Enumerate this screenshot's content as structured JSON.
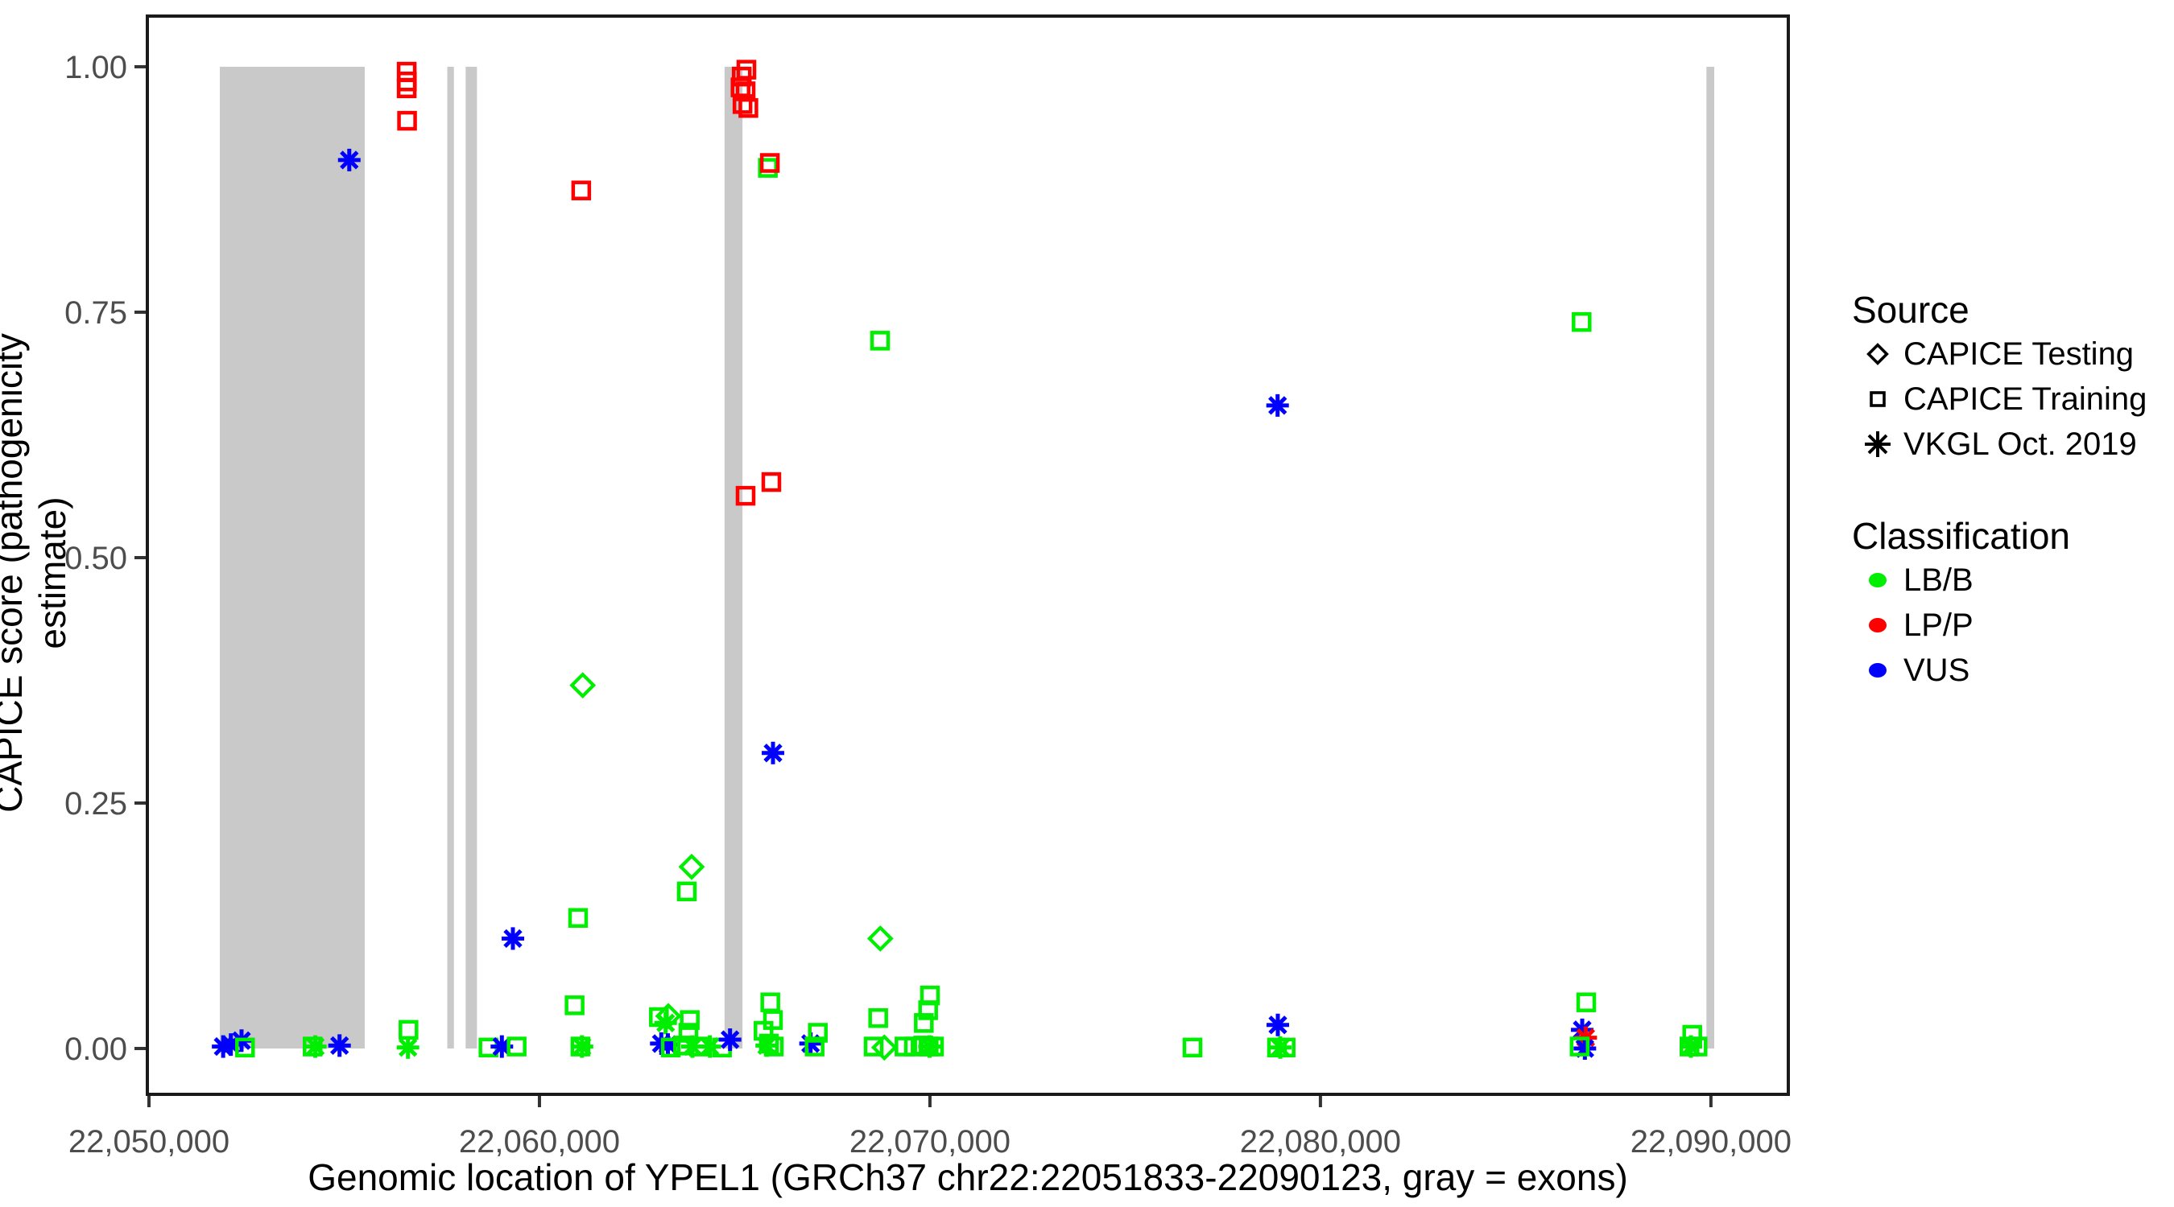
{
  "chart_data": {
    "type": "scatter",
    "title": "",
    "xlabel": "Genomic location of YPEL1 (GRCh37 chr22:22051833-22090123, gray = exons)",
    "ylabel": "CAPICE score (pathogenicity estimate)",
    "xlim": [
      22049959,
      22091982
    ],
    "ylim": [
      -0.0467,
      1.0516
    ],
    "grid": false,
    "x_ticks": [
      {
        "value": 22050000,
        "label": "22,050,000"
      },
      {
        "value": 22060000,
        "label": "22,060,000"
      },
      {
        "value": 22070000,
        "label": "22,070,000"
      },
      {
        "value": 22080000,
        "label": "22,080,000"
      },
      {
        "value": 22090000,
        "label": "22,090,000"
      }
    ],
    "y_ticks": [
      {
        "value": 0.0,
        "label": "0.00"
      },
      {
        "value": 0.25,
        "label": "0.25"
      },
      {
        "value": 0.5,
        "label": "0.50"
      },
      {
        "value": 0.75,
        "label": "0.75"
      },
      {
        "value": 1.0,
        "label": "1.00"
      }
    ],
    "exons_note": "gray vertical bands spanning score 0 to 1, genomic start/end",
    "exons": [
      [
        22051815,
        22055526
      ],
      [
        22057640,
        22057810
      ],
      [
        22058110,
        22058400
      ],
      [
        22064740,
        22065200
      ],
      [
        22089885,
        22090085
      ]
    ],
    "point_fields": "x = genomic position, y = CAPICE score, s = source (testing|training|vkgl), c = classification",
    "points": [
      {
        "x": 22056600,
        "y": 0.995,
        "s": "training",
        "c": "LP/P"
      },
      {
        "x": 22056605,
        "y": 0.985,
        "s": "training",
        "c": "LP/P"
      },
      {
        "x": 22056600,
        "y": 0.978,
        "s": "training",
        "c": "LP/P"
      },
      {
        "x": 22056610,
        "y": 0.945,
        "s": "training",
        "c": "LP/P"
      },
      {
        "x": 22055130,
        "y": 0.905,
        "s": "vkgl",
        "c": "VUS"
      },
      {
        "x": 22065300,
        "y": 0.997,
        "s": "training",
        "c": "LP/P"
      },
      {
        "x": 22065180,
        "y": 0.99,
        "s": "training",
        "c": "LP/P"
      },
      {
        "x": 22065150,
        "y": 0.979,
        "s": "training",
        "c": "LP/P"
      },
      {
        "x": 22065280,
        "y": 0.975,
        "s": "training",
        "c": "LP/P"
      },
      {
        "x": 22065200,
        "y": 0.962,
        "s": "training",
        "c": "LP/P"
      },
      {
        "x": 22065350,
        "y": 0.958,
        "s": "training",
        "c": "LP/P"
      },
      {
        "x": 22065850,
        "y": 0.897,
        "s": "training",
        "c": "LB/B"
      },
      {
        "x": 22065900,
        "y": 0.902,
        "s": "training",
        "c": "LP/P"
      },
      {
        "x": 22061070,
        "y": 0.874,
        "s": "training",
        "c": "LP/P"
      },
      {
        "x": 22068723,
        "y": 0.721,
        "s": "training",
        "c": "LB/B"
      },
      {
        "x": 22086689,
        "y": 0.74,
        "s": "training",
        "c": "LB/B"
      },
      {
        "x": 22078903,
        "y": 0.655,
        "s": "vkgl",
        "c": "VUS"
      },
      {
        "x": 22065939,
        "y": 0.577,
        "s": "training",
        "c": "LP/P"
      },
      {
        "x": 22065279,
        "y": 0.563,
        "s": "training",
        "c": "LP/P"
      },
      {
        "x": 22061108,
        "y": 0.37,
        "s": "testing",
        "c": "LB/B"
      },
      {
        "x": 22065981,
        "y": 0.301,
        "s": "vkgl",
        "c": "VUS"
      },
      {
        "x": 22063898,
        "y": 0.185,
        "s": "testing",
        "c": "LB/B"
      },
      {
        "x": 22063774,
        "y": 0.16,
        "s": "training",
        "c": "LB/B"
      },
      {
        "x": 22060990,
        "y": 0.133,
        "s": "training",
        "c": "LB/B"
      },
      {
        "x": 22059320,
        "y": 0.112,
        "s": "vkgl",
        "c": "VUS"
      },
      {
        "x": 22068729,
        "y": 0.112,
        "s": "testing",
        "c": "LB/B"
      },
      {
        "x": 22052097,
        "y": 0.004,
        "s": "vkgl",
        "c": "VUS"
      },
      {
        "x": 22052371,
        "y": 0.008,
        "s": "vkgl",
        "c": "VUS"
      },
      {
        "x": 22051900,
        "y": 0.002,
        "s": "vkgl",
        "c": "VUS"
      },
      {
        "x": 22052460,
        "y": 0.001,
        "s": "training",
        "c": "LB/B"
      },
      {
        "x": 22054192,
        "y": 0.002,
        "s": "training",
        "c": "LB/B"
      },
      {
        "x": 22054260,
        "y": 0.002,
        "s": "vkgl",
        "c": "LB/B"
      },
      {
        "x": 22054881,
        "y": 0.003,
        "s": "vkgl",
        "c": "VUS"
      },
      {
        "x": 22056646,
        "y": 0.019,
        "s": "training",
        "c": "LB/B"
      },
      {
        "x": 22056633,
        "y": 0.001,
        "s": "vkgl",
        "c": "LB/B"
      },
      {
        "x": 22058695,
        "y": 0.001,
        "s": "training",
        "c": "LB/B"
      },
      {
        "x": 22059038,
        "y": 0.002,
        "s": "vkgl",
        "c": "VUS"
      },
      {
        "x": 22059416,
        "y": 0.002,
        "s": "training",
        "c": "LB/B"
      },
      {
        "x": 22060900,
        "y": 0.044,
        "s": "training",
        "c": "LB/B"
      },
      {
        "x": 22061050,
        "y": 0.002,
        "s": "training",
        "c": "LB/B"
      },
      {
        "x": 22061090,
        "y": 0.002,
        "s": "vkgl",
        "c": "LB/B"
      },
      {
        "x": 22063059,
        "y": 0.032,
        "s": "training",
        "c": "LB/B"
      },
      {
        "x": 22063300,
        "y": 0.033,
        "s": "testing",
        "c": "LB/B"
      },
      {
        "x": 22063232,
        "y": 0.026,
        "s": "vkgl",
        "c": "LB/B"
      },
      {
        "x": 22063120,
        "y": 0.005,
        "s": "vkgl",
        "c": "VUS"
      },
      {
        "x": 22063290,
        "y": 0.004,
        "s": "vkgl",
        "c": "VUS"
      },
      {
        "x": 22063362,
        "y": 0.001,
        "s": "training",
        "c": "LB/B"
      },
      {
        "x": 22063850,
        "y": 0.029,
        "s": "training",
        "c": "LB/B"
      },
      {
        "x": 22063815,
        "y": 0.016,
        "s": "training",
        "c": "LB/B"
      },
      {
        "x": 22063677,
        "y": 0.003,
        "s": "training",
        "c": "LB/B"
      },
      {
        "x": 22063918,
        "y": 0.002,
        "s": "vkgl",
        "c": "LB/B"
      },
      {
        "x": 22064089,
        "y": 0.002,
        "s": "training",
        "c": "LB/B"
      },
      {
        "x": 22064365,
        "y": 0.002,
        "s": "vkgl",
        "c": "LB/B"
      },
      {
        "x": 22064675,
        "y": 0.001,
        "s": "training",
        "c": "LB/B"
      },
      {
        "x": 22064881,
        "y": 0.009,
        "s": "vkgl",
        "c": "VUS"
      },
      {
        "x": 22065912,
        "y": 0.047,
        "s": "training",
        "c": "LB/B"
      },
      {
        "x": 22065980,
        "y": 0.029,
        "s": "training",
        "c": "LB/B"
      },
      {
        "x": 22065739,
        "y": 0.018,
        "s": "training",
        "c": "LB/B"
      },
      {
        "x": 22065877,
        "y": 0.005,
        "s": "training",
        "c": "LB/B"
      },
      {
        "x": 22065820,
        "y": 0.003,
        "s": "vkgl",
        "c": "LB/B"
      },
      {
        "x": 22066001,
        "y": 0.002,
        "s": "training",
        "c": "LB/B"
      },
      {
        "x": 22066943,
        "y": 0.005,
        "s": "vkgl",
        "c": "VUS"
      },
      {
        "x": 22067046,
        "y": 0.002,
        "s": "training",
        "c": "LB/B"
      },
      {
        "x": 22067129,
        "y": 0.016,
        "s": "training",
        "c": "LB/B"
      },
      {
        "x": 22068675,
        "y": 0.031,
        "s": "training",
        "c": "LB/B"
      },
      {
        "x": 22068558,
        "y": 0.002,
        "s": "training",
        "c": "LB/B"
      },
      {
        "x": 22068832,
        "y": 0.001,
        "s": "testing",
        "c": "LB/B"
      },
      {
        "x": 22069348,
        "y": 0.002,
        "s": "training",
        "c": "LB/B"
      },
      {
        "x": 22069589,
        "y": 0.002,
        "s": "training",
        "c": "LB/B"
      },
      {
        "x": 22069830,
        "y": 0.003,
        "s": "training",
        "c": "LB/B"
      },
      {
        "x": 22069967,
        "y": 0.002,
        "s": "training",
        "c": "LB/B"
      },
      {
        "x": 22069990,
        "y": 0.002,
        "s": "vkgl",
        "c": "LB/B"
      },
      {
        "x": 22070105,
        "y": 0.002,
        "s": "training",
        "c": "LB/B"
      },
      {
        "x": 22070001,
        "y": 0.054,
        "s": "training",
        "c": "LB/B"
      },
      {
        "x": 22069954,
        "y": 0.039,
        "s": "training",
        "c": "LB/B"
      },
      {
        "x": 22069843,
        "y": 0.026,
        "s": "training",
        "c": "LB/B"
      },
      {
        "x": 22076723,
        "y": 0.001,
        "s": "training",
        "c": "LB/B"
      },
      {
        "x": 22078909,
        "y": 0.024,
        "s": "vkgl",
        "c": "VUS"
      },
      {
        "x": 22078888,
        "y": 0.001,
        "s": "training",
        "c": "LB/B"
      },
      {
        "x": 22078971,
        "y": 0.001,
        "s": "vkgl",
        "c": "LB/B"
      },
      {
        "x": 22079109,
        "y": 0.001,
        "s": "training",
        "c": "LB/B"
      },
      {
        "x": 22086807,
        "y": 0.047,
        "s": "training",
        "c": "LB/B"
      },
      {
        "x": 22086704,
        "y": 0.019,
        "s": "vkgl",
        "c": "VUS"
      },
      {
        "x": 22086793,
        "y": 0.011,
        "s": "vkgl",
        "c": "LP/P"
      },
      {
        "x": 22086772,
        "y": 0.0,
        "s": "vkgl",
        "c": "VUS"
      },
      {
        "x": 22086637,
        "y": 0.002,
        "s": "training",
        "c": "LB/B"
      },
      {
        "x": 22089522,
        "y": 0.014,
        "s": "training",
        "c": "LB/B"
      },
      {
        "x": 22089451,
        "y": 0.002,
        "s": "training",
        "c": "LB/B"
      },
      {
        "x": 22089658,
        "y": 0.002,
        "s": "training",
        "c": "LB/B"
      },
      {
        "x": 22089487,
        "y": 0.002,
        "s": "vkgl",
        "c": "LB/B"
      }
    ]
  },
  "legend": {
    "source_title": "Source",
    "source_items": [
      {
        "label": "CAPICE Testing",
        "symbol": "diamond"
      },
      {
        "label": "CAPICE Training",
        "symbol": "square"
      },
      {
        "label": "VKGL Oct. 2019",
        "symbol": "asterisk"
      }
    ],
    "class_title": "Classification",
    "class_items": [
      {
        "label": "LB/B",
        "color": "#00EE00"
      },
      {
        "label": "LP/P",
        "color": "#FF0000"
      },
      {
        "label": "VUS",
        "color": "#0000FF"
      }
    ]
  },
  "colors": {
    "LB/B": "#00EE00",
    "LP/P": "#FF0000",
    "VUS": "#0000FF",
    "exon": "#C9C9C9",
    "axis_text": "#4D4D4D",
    "border": "#1A1A1A"
  }
}
